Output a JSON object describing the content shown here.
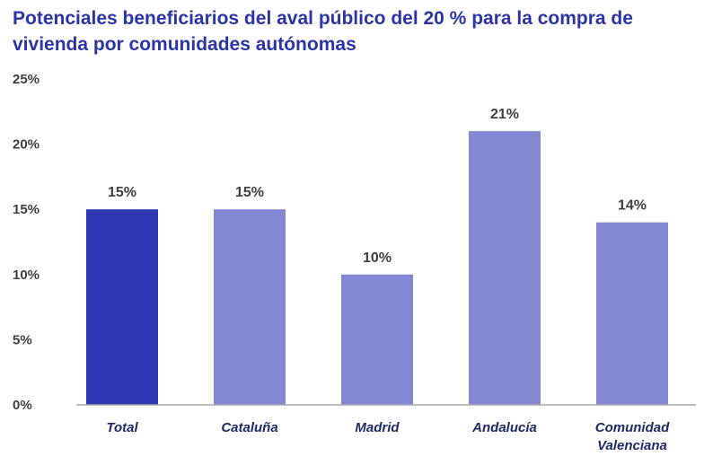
{
  "chart_data": {
    "type": "bar",
    "title": "Potenciales beneficiarios del aval público del 20 % para la compra de vivienda por comunidades autónomas",
    "categories": [
      "Total",
      "Cataluña",
      "Madrid",
      "Andalucía",
      "Comunidad Valenciana"
    ],
    "values": [
      15,
      15,
      10,
      21,
      14
    ],
    "data_labels": [
      "15%",
      "15%",
      "10%",
      "21%",
      "14%"
    ],
    "yticks": [
      "0%",
      "5%",
      "10%",
      "15%",
      "20%",
      "25%"
    ],
    "ylim": [
      0,
      25
    ],
    "xlabel": "",
    "ylabel": "",
    "grid": false,
    "colors": {
      "highlight": "#2E38B1",
      "bars": "#8289D2",
      "title": "#2B35A6"
    }
  }
}
